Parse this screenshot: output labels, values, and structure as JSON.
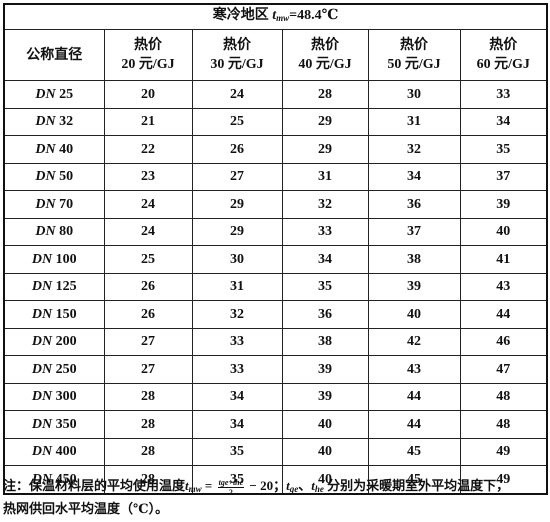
{
  "title": {
    "prefix": "寒冷地区 ",
    "var": "t",
    "var_sub": "mw",
    "suffix": "=48.4℃"
  },
  "header": {
    "first_col": "公称直径",
    "price_label": "热价",
    "columns": [
      "20 元/GJ",
      "30 元/GJ",
      "40 元/GJ",
      "50 元/GJ",
      "60 元/GJ"
    ]
  },
  "rows": [
    {
      "prefix": "DN",
      "size": "25",
      "values": [
        "20",
        "24",
        "28",
        "30",
        "33"
      ]
    },
    {
      "prefix": "DN",
      "size": "32",
      "values": [
        "21",
        "25",
        "29",
        "31",
        "34"
      ]
    },
    {
      "prefix": "DN",
      "size": "40",
      "values": [
        "22",
        "26",
        "29",
        "32",
        "35"
      ]
    },
    {
      "prefix": "DN",
      "size": "50",
      "values": [
        "23",
        "27",
        "31",
        "34",
        "37"
      ]
    },
    {
      "prefix": "DN",
      "size": "70",
      "values": [
        "24",
        "29",
        "32",
        "36",
        "39"
      ]
    },
    {
      "prefix": "DN",
      "size": "80",
      "values": [
        "24",
        "29",
        "33",
        "37",
        "40"
      ]
    },
    {
      "prefix": "DN",
      "size": "100",
      "values": [
        "25",
        "30",
        "34",
        "38",
        "41"
      ]
    },
    {
      "prefix": "DN",
      "size": "125",
      "values": [
        "26",
        "31",
        "35",
        "39",
        "43"
      ]
    },
    {
      "prefix": "DN",
      "size": "150",
      "values": [
        "26",
        "32",
        "36",
        "40",
        "44"
      ]
    },
    {
      "prefix": "DN",
      "size": "200",
      "values": [
        "27",
        "33",
        "38",
        "42",
        "46"
      ]
    },
    {
      "prefix": "DN",
      "size": "250",
      "values": [
        "27",
        "33",
        "39",
        "43",
        "47"
      ]
    },
    {
      "prefix": "DN",
      "size": "300",
      "values": [
        "28",
        "34",
        "39",
        "44",
        "48"
      ]
    },
    {
      "prefix": "DN",
      "size": "350",
      "values": [
        "28",
        "34",
        "40",
        "44",
        "48"
      ]
    },
    {
      "prefix": "DN",
      "size": "400",
      "values": [
        "28",
        "35",
        "40",
        "45",
        "49"
      ]
    },
    {
      "prefix": "DN",
      "size": "450",
      "values": [
        "28",
        "35",
        "40",
        "45",
        "49"
      ]
    }
  ],
  "note": {
    "lead": "注：保温材料层的平均使用温度",
    "t": "t",
    "mw": "mw",
    "eq": " = ",
    "frac_num": "t",
    "frac_num_sub1": "ge",
    "frac_plus": "+",
    "frac_num_sub2": "he",
    "frac_den": "2",
    "minus": " − 20；",
    "tge": "t",
    "ge": "ge",
    "sep": "、",
    "the": "t",
    "he": "he",
    "tail": " 分别为采暖期室外平均温度下，",
    "line2": "热网供回水平均温度（℃）。"
  }
}
